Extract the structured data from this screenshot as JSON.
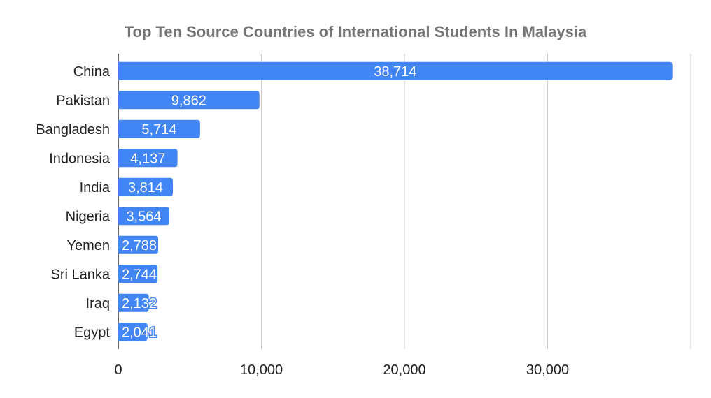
{
  "chart_data": {
    "type": "bar",
    "orientation": "horizontal",
    "title": "Top Ten Source Countries of International Students In Malaysia",
    "xlabel": "",
    "ylabel": "",
    "categories": [
      "China",
      "Pakistan",
      "Bangladesh",
      "Indonesia",
      "India",
      "Nigeria",
      "Yemen",
      "Sri Lanka",
      "Iraq",
      "Egypt"
    ],
    "values": [
      38714,
      9862,
      5714,
      4137,
      3814,
      3564,
      2788,
      2744,
      2132,
      2041
    ],
    "data_labels": [
      "38,714",
      "9,862",
      "5,714",
      "4,137",
      "3,814",
      "3,564",
      "2,788",
      "2,744",
      "2,132",
      "2,041"
    ],
    "xlim": [
      0,
      40000
    ],
    "xticks": [
      0,
      10000,
      20000,
      30000
    ],
    "xtick_labels": [
      "0",
      "10,000",
      "20,000",
      "30,000"
    ],
    "grid": true,
    "legend": "none",
    "bar_color": "#4285f4"
  }
}
